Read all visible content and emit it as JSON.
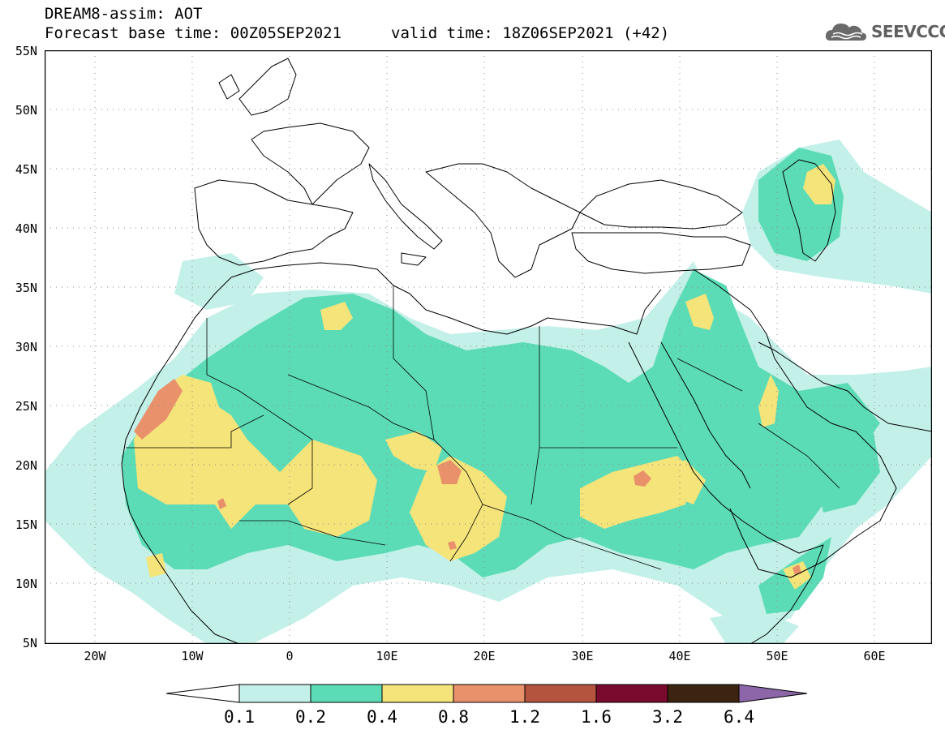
{
  "title": {
    "model_line": "DREAM8-assim: AOT",
    "base_time_line": "Forecast base time: 00Z05SEP2021",
    "valid_time_line": "valid time: 18Z06SEP2021 (+42)"
  },
  "logo": {
    "text": "SEEVCCC",
    "icon": "cloud-icon"
  },
  "map": {
    "lat_labels": [
      "55N",
      "50N",
      "45N",
      "40N",
      "35N",
      "30N",
      "25N",
      "20N",
      "15N",
      "10N",
      "5N"
    ],
    "lon_labels": [
      "20W",
      "10W",
      "0",
      "10E",
      "20E",
      "30E",
      "40E",
      "50E",
      "60E"
    ],
    "lat_range": [
      5,
      55
    ],
    "lon_range": [
      -25,
      65
    ],
    "grid": "dotted"
  },
  "colorbar": {
    "labels": [
      "0.1",
      "0.2",
      "0.4",
      "0.8",
      "1.2",
      "1.6",
      "3.2",
      "6.4"
    ],
    "colors": [
      "#ffffff",
      "#c4f0ea",
      "#5cdcb6",
      "#f5e47a",
      "#e8916b",
      "#b5543e",
      "#7a0a2e",
      "#3b2410",
      "#8c66a8"
    ]
  }
}
